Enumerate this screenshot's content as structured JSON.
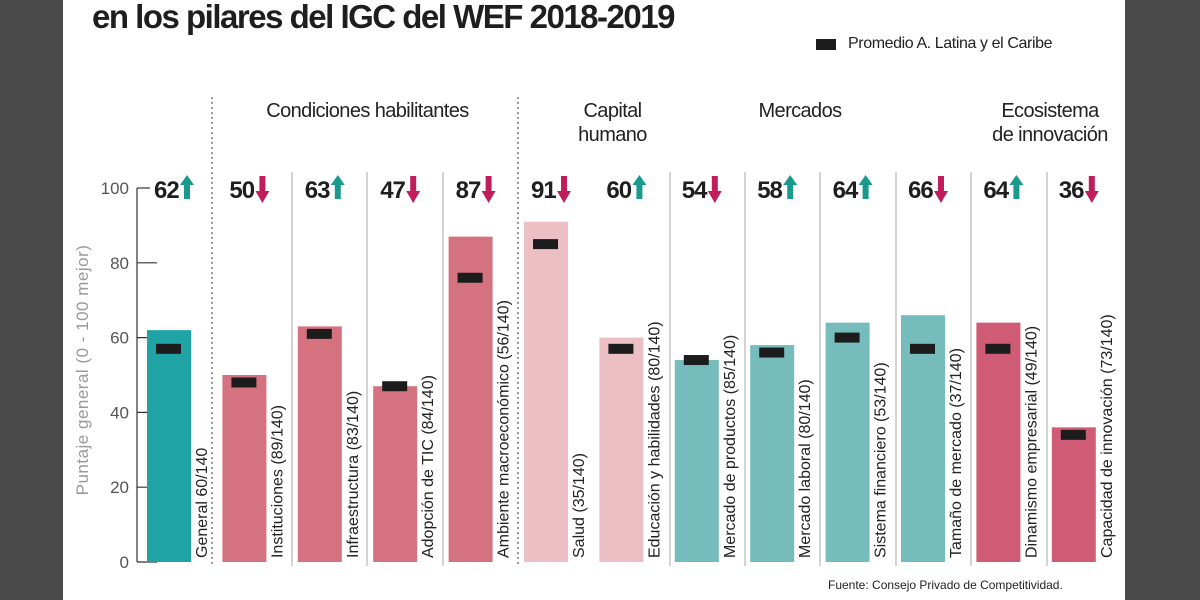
{
  "title": "en los pilares del IGC del WEF 2018-2019",
  "legend": {
    "label": "Promedio A. Latina y el Caribe"
  },
  "groups": [
    "Condiciones habilitantes",
    "Capital humano",
    "Mercados",
    "Ecosistema de innovación"
  ],
  "source": "Fuente: Consejo Privado de Competitividad.",
  "chart_data": {
    "type": "bar",
    "ylabel": "Puntaje general (0 - 100 mejor)",
    "ylim": [
      0,
      100
    ],
    "yticks": [
      0,
      20,
      40,
      60,
      80,
      100
    ],
    "categories": [
      "General 60/140",
      "Instituciones (89/140)",
      "Infraestructura (83/140)",
      "Adopción de TIC (84/140)",
      "Ambiente macroeconómico (56/140)",
      "Salud (35/140)",
      "Educación y habilidades (80/140)",
      "Mercado de productos (85/140)",
      "Mercado laboral (80/140)",
      "Sistema financiero (53/140)",
      "Tamaño de mercado (37/140)",
      "Dinamismo empresarial (49/140)",
      "Capacidad de innovación (73/140)"
    ],
    "group_of_category": [
      "General",
      "Condiciones habilitantes",
      "Condiciones habilitantes",
      "Condiciones habilitantes",
      "Condiciones habilitantes",
      "Capital humano",
      "Capital humano",
      "Mercados",
      "Mercados",
      "Mercados",
      "Mercados",
      "Ecosistema de innovación",
      "Ecosistema de innovación"
    ],
    "series": [
      {
        "name": "",
        "values": [
          62,
          50,
          63,
          47,
          87,
          91,
          60,
          54,
          58,
          64,
          66,
          64,
          36
        ],
        "trend": [
          "up",
          "down",
          "up",
          "down",
          "down",
          "down",
          "up",
          "down",
          "up",
          "up",
          "down",
          "up",
          "down"
        ]
      },
      {
        "name": "Promedio A. Latina y el Caribe",
        "values": [
          57,
          48,
          61,
          47,
          76,
          85,
          57,
          54,
          56,
          60,
          57,
          57,
          34
        ]
      }
    ],
    "colors": {
      "General": "#1fa3a4",
      "Condiciones habilitantes": "#d5727f",
      "Capital humano": "#ebbfc4",
      "Mercados": "#76bcbc",
      "Ecosistema de innovación": "#cf5b74",
      "up": "#1a9a8c",
      "down": "#c21d5b",
      "average": "#1c1c1c"
    }
  }
}
